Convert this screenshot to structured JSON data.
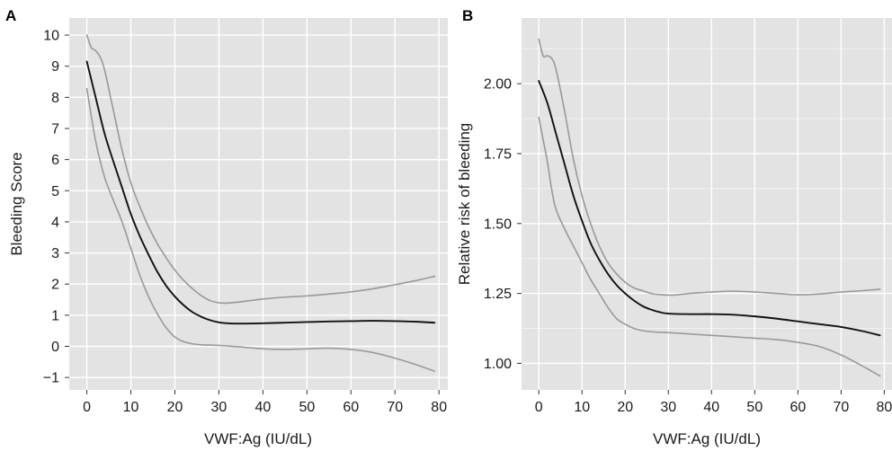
{
  "chart_data": [
    {
      "panel": "A",
      "type": "line",
      "xlabel": "VWF:Ag (IU/dL)",
      "ylabel": "Bleeding Score",
      "xlim": [
        -4,
        82
      ],
      "ylim": [
        -1.4,
        10.55
      ],
      "xticks": [
        0,
        10,
        20,
        30,
        40,
        50,
        60,
        70,
        80
      ],
      "xtick_labels": [
        "0",
        "10",
        "20",
        "30",
        "40",
        "50",
        "60",
        "70",
        "80"
      ],
      "yticks": [
        -1,
        0,
        1,
        2,
        3,
        4,
        5,
        6,
        7,
        8,
        9,
        10
      ],
      "ytick_labels": [
        "−1",
        "0",
        "1",
        "2",
        "3",
        "4",
        "5",
        "6",
        "7",
        "8",
        "9",
        "10"
      ],
      "grid": true,
      "series": [
        {
          "role": "estimate",
          "color": "#111111",
          "x": [
            0,
            2,
            4,
            6,
            8,
            10,
            12,
            14,
            16,
            18,
            20,
            22,
            24,
            26,
            28,
            30,
            32,
            35,
            40,
            45,
            50,
            55,
            60,
            65,
            70,
            75,
            79
          ],
          "y": [
            9.15,
            8.0,
            6.85,
            5.95,
            5.1,
            4.25,
            3.55,
            2.95,
            2.4,
            1.95,
            1.6,
            1.32,
            1.1,
            0.95,
            0.84,
            0.77,
            0.74,
            0.73,
            0.74,
            0.76,
            0.78,
            0.8,
            0.81,
            0.82,
            0.81,
            0.79,
            0.76
          ]
        },
        {
          "role": "upper-bound",
          "color": "#999999",
          "x": [
            0,
            1,
            2,
            3,
            4,
            6,
            8,
            10,
            12,
            14,
            16,
            18,
            20,
            22,
            24,
            26,
            28,
            30,
            32,
            35,
            40,
            45,
            50,
            55,
            60,
            65,
            70,
            75,
            79
          ],
          "y": [
            10.0,
            9.6,
            9.5,
            9.3,
            8.9,
            7.6,
            6.3,
            5.25,
            4.5,
            3.85,
            3.3,
            2.85,
            2.45,
            2.12,
            1.85,
            1.63,
            1.47,
            1.4,
            1.39,
            1.43,
            1.52,
            1.58,
            1.62,
            1.68,
            1.75,
            1.85,
            1.98,
            2.12,
            2.25
          ]
        },
        {
          "role": "lower-bound",
          "color": "#999999",
          "x": [
            0,
            2,
            4,
            6,
            8,
            10,
            12,
            14,
            16,
            18,
            20,
            22,
            24,
            26,
            28,
            30,
            35,
            40,
            45,
            50,
            55,
            60,
            65,
            70,
            75,
            79
          ],
          "y": [
            8.28,
            6.6,
            5.45,
            4.7,
            4.0,
            3.15,
            2.3,
            1.6,
            1.05,
            0.6,
            0.3,
            0.15,
            0.08,
            0.05,
            0.04,
            0.03,
            -0.02,
            -0.08,
            -0.1,
            -0.08,
            -0.06,
            -0.1,
            -0.2,
            -0.38,
            -0.6,
            -0.8
          ]
        }
      ]
    },
    {
      "panel": "B",
      "type": "line",
      "xlabel": "VWF:Ag (IU/dL)",
      "ylabel": "Relative risk of bleeding",
      "xlim": [
        -4,
        82
      ],
      "ylim": [
        0.905,
        2.235
      ],
      "xticks": [
        0,
        10,
        20,
        30,
        40,
        50,
        60,
        70,
        80
      ],
      "xtick_labels": [
        "0",
        "10",
        "20",
        "30",
        "40",
        "50",
        "60",
        "70",
        "80"
      ],
      "yticks": [
        1.0,
        1.25,
        1.5,
        1.75,
        2.0
      ],
      "ytick_labels": [
        "1.00",
        "1.25",
        "1.50",
        "1.75",
        "2.00"
      ],
      "minor_yticks": [
        1.125,
        1.375,
        1.625,
        1.875,
        2.125
      ],
      "grid": true,
      "series": [
        {
          "role": "estimate",
          "color": "#111111",
          "x": [
            0,
            2,
            4,
            6,
            8,
            10,
            12,
            14,
            16,
            18,
            20,
            22,
            24,
            26,
            28,
            30,
            35,
            40,
            45,
            50,
            55,
            60,
            65,
            70,
            75,
            79
          ],
          "y": [
            2.01,
            1.93,
            1.82,
            1.71,
            1.6,
            1.51,
            1.43,
            1.37,
            1.32,
            1.28,
            1.25,
            1.225,
            1.205,
            1.192,
            1.183,
            1.178,
            1.176,
            1.176,
            1.174,
            1.168,
            1.16,
            1.15,
            1.14,
            1.13,
            1.115,
            1.1
          ]
        },
        {
          "role": "upper-bound",
          "color": "#999999",
          "x": [
            0,
            1,
            2,
            3,
            4,
            6,
            8,
            10,
            12,
            14,
            16,
            18,
            20,
            22,
            24,
            26,
            28,
            30,
            32,
            35,
            40,
            45,
            50,
            55,
            60,
            65,
            70,
            75,
            79
          ],
          "y": [
            2.16,
            2.1,
            2.1,
            2.09,
            2.05,
            1.9,
            1.73,
            1.6,
            1.5,
            1.42,
            1.36,
            1.32,
            1.29,
            1.27,
            1.26,
            1.25,
            1.246,
            1.244,
            1.245,
            1.25,
            1.255,
            1.258,
            1.255,
            1.25,
            1.245,
            1.248,
            1.255,
            1.26,
            1.265
          ]
        },
        {
          "role": "lower-bound",
          "color": "#999999",
          "x": [
            0,
            1,
            2,
            3,
            4,
            6,
            8,
            10,
            12,
            14,
            16,
            18,
            20,
            22,
            24,
            26,
            28,
            30,
            35,
            40,
            45,
            50,
            55,
            60,
            65,
            70,
            75,
            79
          ],
          "y": [
            1.88,
            1.8,
            1.72,
            1.62,
            1.55,
            1.48,
            1.42,
            1.36,
            1.3,
            1.25,
            1.2,
            1.16,
            1.14,
            1.125,
            1.117,
            1.113,
            1.111,
            1.11,
            1.105,
            1.1,
            1.095,
            1.09,
            1.085,
            1.075,
            1.06,
            1.03,
            0.99,
            0.955
          ]
        }
      ]
    }
  ],
  "colors": {
    "panel_bg": "#e3e3e3",
    "grid_line": "#ffffff",
    "axis_tick": "#333333",
    "estimate_line": "#111111",
    "bound_line": "#999999"
  }
}
